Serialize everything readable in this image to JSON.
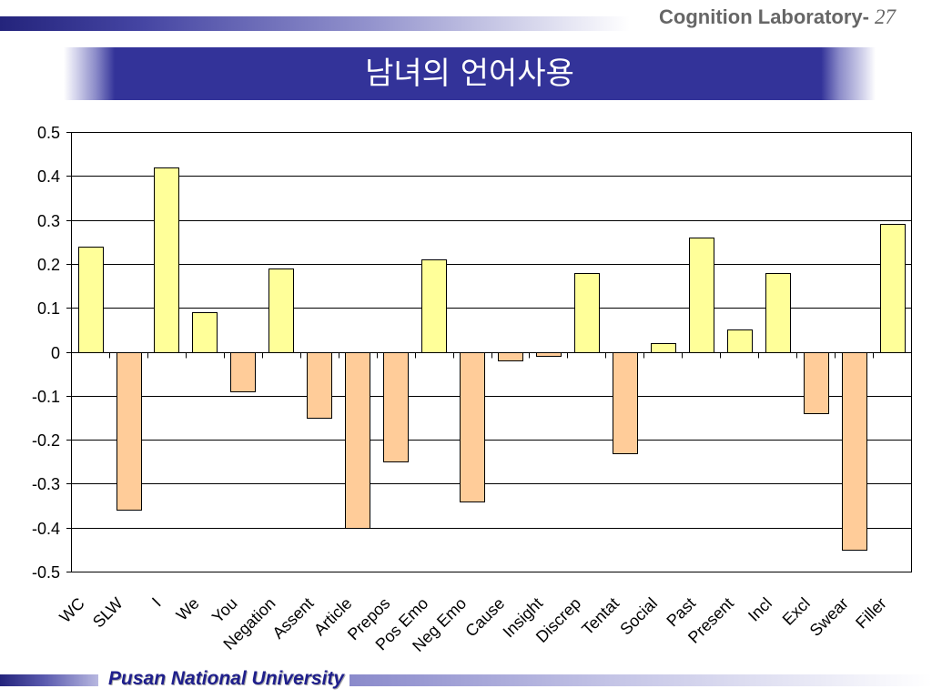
{
  "header": {
    "lab_name": "Cognition Laboratory-",
    "page_number": "27"
  },
  "title": "남녀의 언어사용",
  "footer": {
    "university": "Pusan National University"
  },
  "colors": {
    "brand_blue": "#333399",
    "header_text": "#666666",
    "footer_text": "#1F1F8C"
  },
  "chart_data": {
    "type": "bar",
    "categories": [
      "WC",
      "SLW",
      "I",
      "We",
      "You",
      "Negation",
      "Assent",
      "Article",
      "Prepos",
      "Pos Emo",
      "Neg Emo",
      "Cause",
      "Insight",
      "Discrep",
      "Tentat",
      "Social",
      "Past",
      "Present",
      "Incl",
      "Excl",
      "Swear",
      "Filler"
    ],
    "values": [
      0.24,
      -0.36,
      0.42,
      0.09,
      -0.09,
      0.19,
      -0.15,
      -0.4,
      -0.25,
      0.21,
      -0.34,
      -0.02,
      -0.01,
      0.18,
      -0.23,
      0.02,
      0.26,
      0.05,
      0.18,
      -0.14,
      -0.45,
      0.29
    ],
    "ylim": [
      -0.5,
      0.5
    ],
    "yticks": [
      "0.5",
      "0.4",
      "0.3",
      "0.2",
      "0.1",
      "0",
      "-0.1",
      "-0.2",
      "-0.3",
      "-0.4",
      "-0.5"
    ],
    "grid": true,
    "legend": "none",
    "positive_color": "#FFFF99",
    "negative_color": "#FFCC99"
  }
}
